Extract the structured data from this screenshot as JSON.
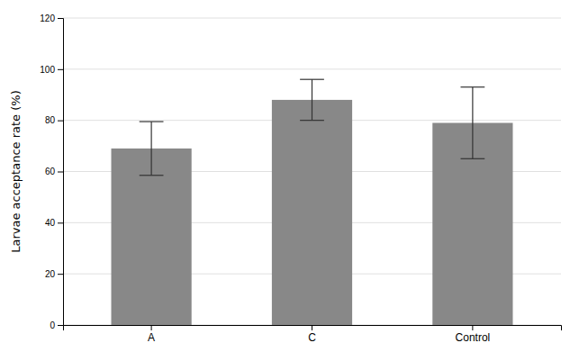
{
  "chart_data": {
    "type": "bar",
    "ylabel": "Larvae acceptance rate (%)",
    "categories": [
      "A",
      "C",
      "Control"
    ],
    "values": [
      69.0,
      88.0,
      79.0
    ],
    "errors": [
      10.5,
      8.0,
      14.0
    ],
    "color": "#888888",
    "ylim": [
      0,
      120
    ],
    "yticks": [
      0,
      20,
      40,
      60,
      80,
      100,
      120
    ],
    "grid": true
  }
}
